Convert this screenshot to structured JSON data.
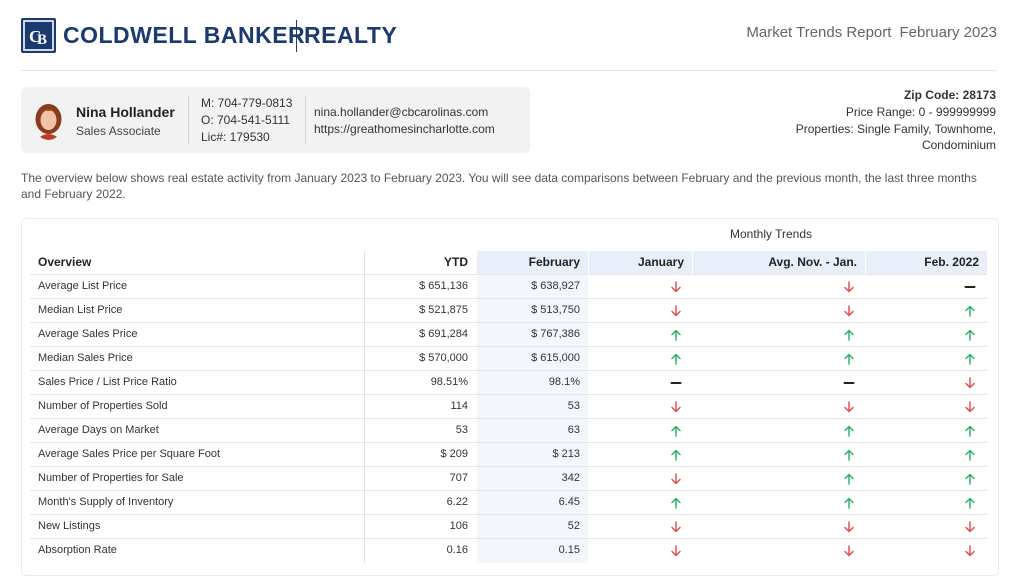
{
  "brand": {
    "name_left": "COLDWELL BANKER",
    "name_right": "REALTY",
    "color": "#1b3a70"
  },
  "report": {
    "title": "Market Trends Report",
    "period": "February 2023"
  },
  "agent": {
    "name": "Nina Hollander",
    "role": "Sales Associate",
    "mobile": "M: 704-779-0813",
    "office": "O: 704-541-5111",
    "license": "Lic#: 179530",
    "email": "nina.hollander@cbcarolinas.com",
    "website": "https://greathomesincharlotte.com"
  },
  "filters": {
    "zip": "Zip Code: 28173",
    "price_range": "Price Range: 0 - 999999999",
    "properties_line1": "Properties: Single Family, Townhome,",
    "properties_line2": "Condominium"
  },
  "intro": "The overview below shows real estate activity from January 2023 to February 2023. You will see data comparisons between February and the previous month, the last three months and February 2022.",
  "table": {
    "group_header": "Monthly Trends",
    "headers": {
      "overview": "Overview",
      "ytd": "YTD",
      "february": "February",
      "january": "January",
      "three_month": "Avg. Nov. - Jan.",
      "last_year": "Feb. 2022"
    },
    "colors": {
      "up": "#2db36a",
      "down": "#e05252",
      "flat": "#222222",
      "header_bg": "#e8effa"
    },
    "rows": [
      {
        "label": "Average List Price",
        "ytd": "$ 651,136",
        "feb": "$ 638,927",
        "jan": "down",
        "three": "down",
        "last": "flat"
      },
      {
        "label": "Median List Price",
        "ytd": "$ 521,875",
        "feb": "$ 513,750",
        "jan": "down",
        "three": "down",
        "last": "up"
      },
      {
        "label": "Average Sales Price",
        "ytd": "$ 691,284",
        "feb": "$ 767,386",
        "jan": "up",
        "three": "up",
        "last": "up"
      },
      {
        "label": "Median Sales Price",
        "ytd": "$ 570,000",
        "feb": "$ 615,000",
        "jan": "up",
        "three": "up",
        "last": "up"
      },
      {
        "label": "Sales Price / List Price Ratio",
        "ytd": "98.51%",
        "feb": "98.1%",
        "jan": "flat",
        "three": "flat",
        "last": "down"
      },
      {
        "label": "Number of Properties Sold",
        "ytd": "114",
        "feb": "53",
        "jan": "down",
        "three": "down",
        "last": "down"
      },
      {
        "label": "Average Days on Market",
        "ytd": "53",
        "feb": "63",
        "jan": "up",
        "three": "up",
        "last": "up"
      },
      {
        "label": "Average Sales Price per Square Foot",
        "ytd": "$ 209",
        "feb": "$ 213",
        "jan": "up",
        "three": "up",
        "last": "up"
      },
      {
        "label": "Number of Properties for Sale",
        "ytd": "707",
        "feb": "342",
        "jan": "down",
        "three": "up",
        "last": "up"
      },
      {
        "label": "Month's Supply of Inventory",
        "ytd": "6.22",
        "feb": "6.45",
        "jan": "up",
        "three": "up",
        "last": "up"
      },
      {
        "label": "New Listings",
        "ytd": "106",
        "feb": "52",
        "jan": "down",
        "three": "down",
        "last": "down"
      },
      {
        "label": "Absorption Rate",
        "ytd": "0.16",
        "feb": "0.15",
        "jan": "down",
        "three": "down",
        "last": "down"
      }
    ]
  }
}
